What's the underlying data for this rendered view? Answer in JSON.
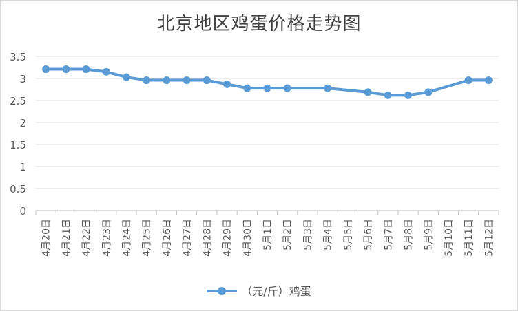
{
  "chart_data": {
    "type": "line",
    "title": "北京地区鸡蛋价格走势图",
    "categories": [
      "4月20日",
      "4月21日",
      "4月22日",
      "4月23日",
      "4月24日",
      "4月25日",
      "4月26日",
      "4月27日",
      "4月28日",
      "4月29日",
      "4月30日",
      "5月1日",
      "5月2日",
      "5月3日",
      "5月4日",
      "5月5日",
      "5月6日",
      "5月7日",
      "5月8日",
      "5月9日",
      "5月10日",
      "5月11日",
      "5月12日"
    ],
    "series": [
      {
        "name": "（元/斤）鸡蛋",
        "color": "#5b9bd5",
        "values": [
          3.21,
          3.21,
          3.21,
          3.15,
          3.03,
          2.96,
          2.96,
          2.96,
          2.96,
          2.87,
          2.78,
          2.78,
          2.78,
          null,
          2.78,
          null,
          2.69,
          2.62,
          2.62,
          2.69,
          null,
          2.96,
          2.96
        ]
      }
    ],
    "yticks": [
      "0",
      "0.5",
      "1",
      "1.5",
      "2",
      "2.5",
      "3",
      "3.5"
    ],
    "ylim": [
      0,
      3.5
    ],
    "grid": true,
    "legend_position": "bottom"
  }
}
